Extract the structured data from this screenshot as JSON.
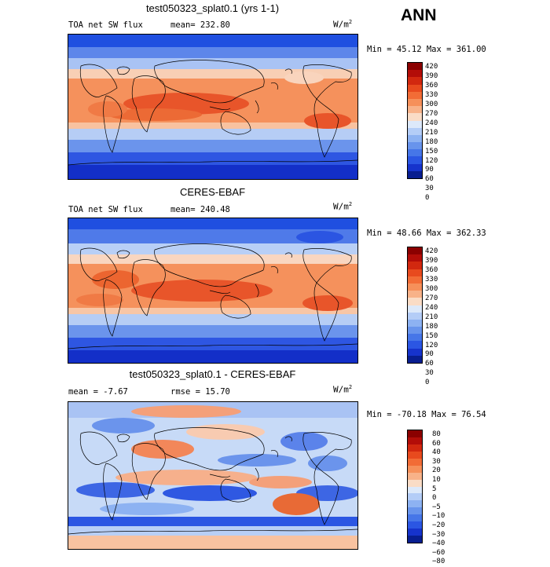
{
  "season": "ANN",
  "units": {
    "base": "W/m",
    "exp": "2"
  },
  "panels": [
    {
      "title": "test050323_splat0.1 (yrs 1-1)",
      "variable": "TOA net SW flux",
      "stat1": "mean= 232.80",
      "stat2": "",
      "minmax": "Min =  45.12 Max = 361.00",
      "ticks": [
        "420",
        "390",
        "360",
        "330",
        "300",
        "270",
        "240",
        "210",
        "180",
        "150",
        "120",
        "90",
        "60",
        "30",
        "0"
      ],
      "colors": [
        "#8b0000",
        "#b30d08",
        "#d2280f",
        "#e84a1e",
        "#f26c36",
        "#f6905a",
        "#f8b289",
        "#fadcc6",
        "#dde9fa",
        "#b4cdf7",
        "#8db2f2",
        "#6894ec",
        "#4676e8",
        "#2b56e3",
        "#1633cc",
        "#081e90"
      ]
    },
    {
      "title": "CERES-EBAF",
      "variable": "TOA net SW flux",
      "stat1": "mean= 240.48",
      "stat2": "",
      "minmax": "Min =  48.66 Max = 362.33",
      "ticks": [
        "420",
        "390",
        "360",
        "330",
        "300",
        "270",
        "240",
        "210",
        "180",
        "150",
        "120",
        "90",
        "60",
        "30",
        "0"
      ],
      "colors": [
        "#8b0000",
        "#b30d08",
        "#d2280f",
        "#e84a1e",
        "#f26c36",
        "#f6905a",
        "#f8b289",
        "#fadcc6",
        "#dde9fa",
        "#b4cdf7",
        "#8db2f2",
        "#6894ec",
        "#4676e8",
        "#2b56e3",
        "#1633cc",
        "#081e90"
      ]
    },
    {
      "title": "test050323_splat0.1 - CERES-EBAF",
      "variable": "",
      "stat1": "mean =   -7.67",
      "stat2": "rmse =   15.70",
      "minmax": "Min = -70.18 Max =  76.54",
      "ticks": [
        "80",
        "60",
        "40",
        "30",
        "20",
        "10",
        "5",
        "0",
        "−5",
        "−10",
        "−20",
        "−30",
        "−40",
        "−60",
        "−80"
      ],
      "colors": [
        "#8b0000",
        "#b30d08",
        "#d2280f",
        "#e84a1e",
        "#f26c36",
        "#f6905a",
        "#f8b289",
        "#fadcc6",
        "#dde9fa",
        "#b4cdf7",
        "#8db2f2",
        "#6894ec",
        "#4676e8",
        "#2b56e3",
        "#1633cc",
        "#081e90"
      ]
    }
  ]
}
